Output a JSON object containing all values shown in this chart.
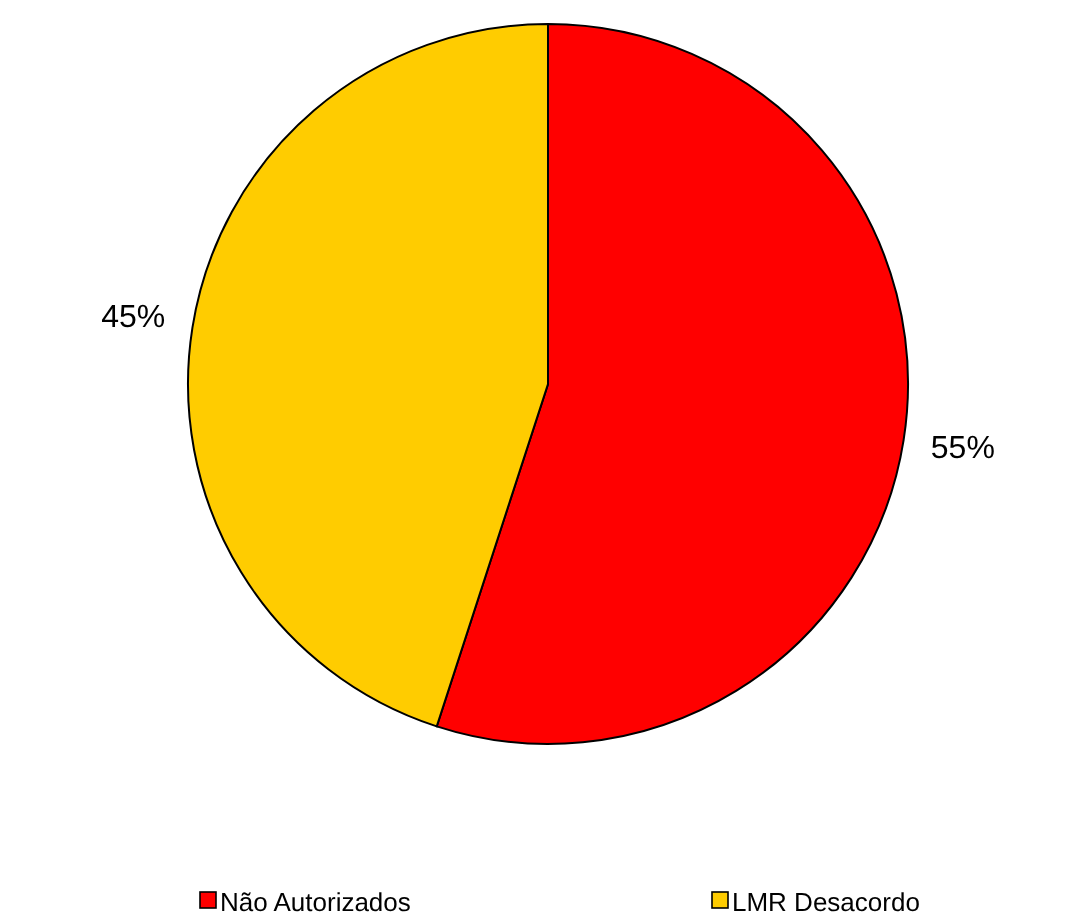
{
  "chart_data": {
    "type": "pie",
    "categories": [
      "Não Autorizados",
      "LMR Desacordo"
    ],
    "values": [
      55,
      45
    ],
    "colors": [
      "#ff0000",
      "#ffcc00"
    ],
    "value_labels": [
      "55%",
      "45%"
    ],
    "legend": "bottom"
  }
}
